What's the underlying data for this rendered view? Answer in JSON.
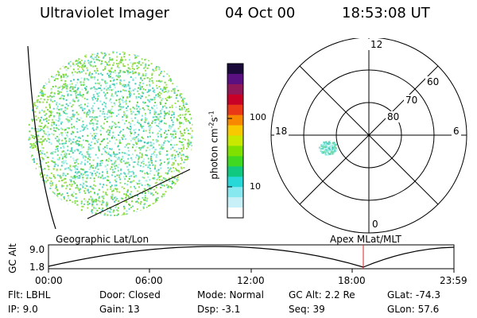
{
  "header": {
    "title": "Ultraviolet Imager",
    "date": "04 Oct 00",
    "time": "18:53:08 UT"
  },
  "colorbar": {
    "unit_prefix": "photon cm",
    "unit_exp1": "-2",
    "unit_mid": "s",
    "unit_exp2": "-1",
    "ticks": [
      "100",
      "10"
    ],
    "colors": [
      "#1a0a3a",
      "#5a1080",
      "#901858",
      "#c80028",
      "#e83818",
      "#f88800",
      "#f8c800",
      "#c8e800",
      "#80e000",
      "#40d820",
      "#10c880",
      "#28d8d8",
      "#88e8f0",
      "#c8f0f8",
      "#ffffff"
    ]
  },
  "polar": {
    "mlt_labels": [
      "12",
      "18",
      "6",
      "0"
    ],
    "lat_labels": [
      "60",
      "70",
      "80"
    ]
  },
  "labels": {
    "geographic": "Geographic Lat/Lon",
    "apex": "Apex MLat/MLT"
  },
  "altitude_plot": {
    "axis_label": "GC Alt",
    "y_ticks": [
      "9.0",
      "1.8"
    ],
    "x_ticks": [
      "00:00",
      "06:00",
      "12:00",
      "18:00",
      "23:59"
    ]
  },
  "info": {
    "flt": "Flt: LBHL",
    "ip": "IP:  9.0",
    "door": "Door: Closed",
    "gain": "Gain: 13",
    "mode": "Mode: Normal",
    "dsp": "Dsp:   -3.1",
    "gcalt": "GC Alt: 2.2 Re",
    "seq": "Seq: 39",
    "glat": "GLat:  -74.3",
    "glon": "GLon:   57.6"
  }
}
